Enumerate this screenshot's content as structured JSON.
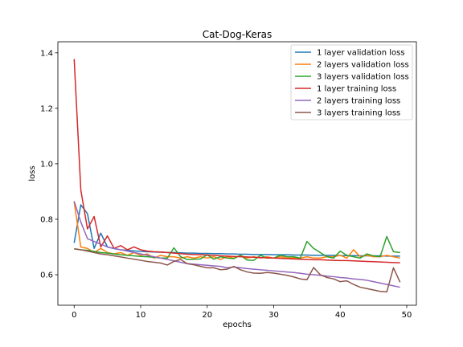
{
  "chart_data": {
    "type": "line",
    "title": "Cat-Dog-Keras",
    "xlabel": "epochs",
    "ylabel": "loss",
    "xlim": [
      -2.45,
      51.45
    ],
    "ylim": [
      0.49,
      1.44
    ],
    "xticks": [
      0,
      10,
      20,
      30,
      40,
      50
    ],
    "yticks": [
      0.6,
      0.8,
      1.0,
      1.2,
      1.4
    ],
    "xtick_labels": [
      "0",
      "10",
      "20",
      "30",
      "40",
      "50"
    ],
    "ytick_labels": [
      "0.6",
      "0.8",
      "1.0",
      "1.2",
      "1.4"
    ],
    "grid": false,
    "legend_position": "top-right",
    "x": [
      0,
      1,
      2,
      3,
      4,
      5,
      6,
      7,
      8,
      9,
      10,
      11,
      12,
      13,
      14,
      15,
      16,
      17,
      18,
      19,
      20,
      21,
      22,
      23,
      24,
      25,
      26,
      27,
      28,
      29,
      30,
      31,
      32,
      33,
      34,
      35,
      36,
      37,
      38,
      39,
      40,
      41,
      42,
      43,
      44,
      45,
      46,
      47,
      48,
      49
    ],
    "series": [
      {
        "name": "1 layer validation loss",
        "color": "#1f77b4",
        "values": [
          0.715,
          0.852,
          0.82,
          0.695,
          0.75,
          0.7,
          0.694,
          0.69,
          0.688,
          0.686,
          0.684,
          0.683,
          0.682,
          0.681,
          0.68,
          0.68,
          0.679,
          0.678,
          0.678,
          0.677,
          0.677,
          0.676,
          0.676,
          0.675,
          0.675,
          0.674,
          0.674,
          0.673,
          0.673,
          0.673,
          0.672,
          0.672,
          0.672,
          0.671,
          0.671,
          0.671,
          0.67,
          0.67,
          0.67,
          0.67,
          0.669,
          0.669,
          0.669,
          0.668,
          0.668,
          0.668,
          0.668,
          0.667,
          0.667,
          0.667
        ]
      },
      {
        "name": "2 layers validation loss",
        "color": "#ff7f0e",
        "values": [
          0.862,
          0.7,
          0.695,
          0.68,
          0.695,
          0.68,
          0.675,
          0.68,
          0.67,
          0.68,
          0.67,
          0.675,
          0.66,
          0.67,
          0.665,
          0.665,
          0.66,
          0.665,
          0.66,
          0.665,
          0.66,
          0.665,
          0.655,
          0.665,
          0.66,
          0.67,
          0.66,
          0.665,
          0.66,
          0.665,
          0.66,
          0.665,
          0.66,
          0.66,
          0.66,
          0.665,
          0.66,
          0.66,
          0.665,
          0.665,
          0.67,
          0.66,
          0.69,
          0.665,
          0.67,
          0.665,
          0.665,
          0.67,
          0.665,
          0.66
        ]
      },
      {
        "name": "3 layers validation loss",
        "color": "#2ca02c",
        "values": [
          0.694,
          0.69,
          0.688,
          0.684,
          0.68,
          0.678,
          0.675,
          0.672,
          0.67,
          0.668,
          0.666,
          0.665,
          0.663,
          0.66,
          0.66,
          0.697,
          0.665,
          0.655,
          0.656,
          0.657,
          0.672,
          0.656,
          0.665,
          0.66,
          0.658,
          0.67,
          0.653,
          0.652,
          0.67,
          0.66,
          0.66,
          0.67,
          0.665,
          0.665,
          0.66,
          0.72,
          0.695,
          0.68,
          0.665,
          0.66,
          0.685,
          0.67,
          0.665,
          0.66,
          0.675,
          0.668,
          0.665,
          0.738,
          0.683,
          0.68
        ]
      },
      {
        "name": "1 layer training loss",
        "color": "#d62728",
        "values": [
          1.378,
          0.905,
          0.765,
          0.81,
          0.7,
          0.74,
          0.695,
          0.705,
          0.69,
          0.7,
          0.69,
          0.685,
          0.683,
          0.682,
          0.68,
          0.678,
          0.676,
          0.674,
          0.673,
          0.672,
          0.671,
          0.67,
          0.668,
          0.667,
          0.666,
          0.665,
          0.664,
          0.663,
          0.662,
          0.661,
          0.66,
          0.659,
          0.658,
          0.657,
          0.656,
          0.655,
          0.654,
          0.654,
          0.653,
          0.652,
          0.651,
          0.651,
          0.65,
          0.649,
          0.648,
          0.647,
          0.646,
          0.645,
          0.644,
          0.643
        ]
      },
      {
        "name": "2 layers training loss",
        "color": "#9467bd",
        "values": [
          0.865,
          0.79,
          0.73,
          0.72,
          0.71,
          0.7,
          0.695,
          0.69,
          0.685,
          0.68,
          0.675,
          0.67,
          0.665,
          0.66,
          0.655,
          0.65,
          0.645,
          0.64,
          0.638,
          0.636,
          0.634,
          0.632,
          0.63,
          0.625,
          0.628,
          0.625,
          0.622,
          0.62,
          0.618,
          0.616,
          0.614,
          0.612,
          0.61,
          0.608,
          0.605,
          0.602,
          0.6,
          0.598,
          0.595,
          0.593,
          0.59,
          0.588,
          0.585,
          0.583,
          0.58,
          0.575,
          0.57,
          0.565,
          0.56,
          0.555
        ]
      },
      {
        "name": "3 layers training loss",
        "color": "#8c564b",
        "values": [
          0.693,
          0.69,
          0.685,
          0.68,
          0.675,
          0.672,
          0.668,
          0.664,
          0.66,
          0.656,
          0.652,
          0.648,
          0.645,
          0.642,
          0.635,
          0.648,
          0.655,
          0.64,
          0.636,
          0.63,
          0.625,
          0.625,
          0.618,
          0.62,
          0.63,
          0.618,
          0.61,
          0.606,
          0.605,
          0.608,
          0.606,
          0.602,
          0.598,
          0.592,
          0.585,
          0.582,
          0.626,
          0.6,
          0.59,
          0.585,
          0.575,
          0.578,
          0.565,
          0.555,
          0.55,
          0.545,
          0.54,
          0.538,
          0.625,
          0.573
        ]
      }
    ]
  }
}
